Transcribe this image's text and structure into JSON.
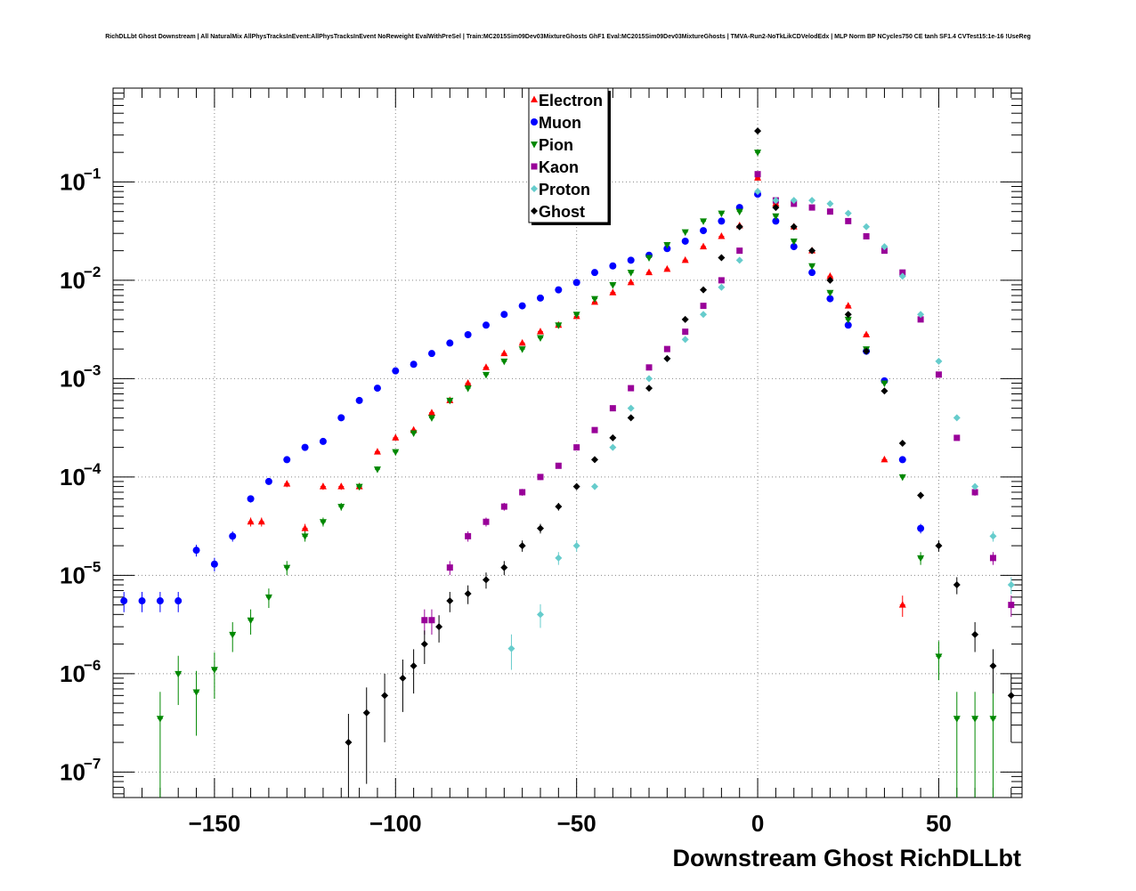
{
  "chart_data": {
    "type": "scatter",
    "title": "RichDLLbt Ghost Downstream | All NaturalMix AllPhysTracksInEvent:AllPhysTracksInEvent NoReweight EvalWithPreSel | Train:MC2015Sim09Dev03MixtureGhosts GhF1 Eval:MC2015Sim09Dev03MixtureGhosts | TMVA-Run2-NoTkLikCDVelodEdx | MLP Norm BP NCycles750 CE tanh SF1.4 CVTest15:1e-16 !UseReg",
    "xlabel": "Downstream Ghost RichDLLbt",
    "ylabel": "",
    "xlim": [
      -178,
      73
    ],
    "ylim": [
      5.5e-08,
      0.9
    ],
    "yscale": "log",
    "grid": true,
    "legend_position": "top-center",
    "x_ticks": [
      {
        "value": -150,
        "label": "−150"
      },
      {
        "value": -100,
        "label": "−100"
      },
      {
        "value": -50,
        "label": "−50"
      },
      {
        "value": 0,
        "label": "0"
      },
      {
        "value": 50,
        "label": "50"
      }
    ],
    "y_ticks": [
      {
        "value": 1e-07,
        "base": "10",
        "exp": "−7"
      },
      {
        "value": 1e-06,
        "base": "10",
        "exp": "−6"
      },
      {
        "value": 1e-05,
        "base": "10",
        "exp": "−5"
      },
      {
        "value": 0.0001,
        "base": "10",
        "exp": "−4"
      },
      {
        "value": 0.001,
        "base": "10",
        "exp": "−3"
      },
      {
        "value": 0.01,
        "base": "10",
        "exp": "−2"
      },
      {
        "value": 0.1,
        "base": "10",
        "exp": "−1"
      }
    ],
    "series": [
      {
        "name": "Electron",
        "color": "#ff0000",
        "marker": "triangle-up",
        "x": [
          -140,
          -137,
          -130,
          -125,
          -120,
          -115,
          -110,
          -105,
          -100,
          -95,
          -90,
          -85,
          -80,
          -75,
          -70,
          -65,
          -60,
          -55,
          -50,
          -45,
          -40,
          -35,
          -30,
          -25,
          -20,
          -15,
          -10,
          -5,
          0,
          5,
          10,
          15,
          20,
          25,
          30,
          35,
          40
        ],
        "y": [
          3.5e-05,
          3.5e-05,
          8.5e-05,
          3e-05,
          8e-05,
          8e-05,
          8e-05,
          0.00018,
          0.00025,
          0.0003,
          0.00045,
          0.0006,
          0.0009,
          0.0013,
          0.0018,
          0.0023,
          0.003,
          0.0035,
          0.0043,
          0.006,
          0.0075,
          0.0095,
          0.012,
          0.013,
          0.016,
          0.022,
          0.028,
          0.036,
          0.11,
          0.06,
          0.035,
          0.02,
          0.011,
          0.0055,
          0.0028,
          0.00015,
          5e-06
        ]
      },
      {
        "name": "Muon",
        "color": "#0000ff",
        "marker": "circle",
        "x": [
          -175,
          -170,
          -165,
          -160,
          -155,
          -150,
          -145,
          -140,
          -135,
          -130,
          -125,
          -120,
          -115,
          -110,
          -105,
          -100,
          -95,
          -90,
          -85,
          -80,
          -75,
          -70,
          -65,
          -60,
          -55,
          -50,
          -45,
          -40,
          -35,
          -30,
          -25,
          -20,
          -15,
          -10,
          -5,
          0,
          5,
          10,
          15,
          20,
          25,
          30,
          35,
          40,
          45
        ],
        "y": [
          5.5e-06,
          5.5e-06,
          5.5e-06,
          5.5e-06,
          1.8e-05,
          1.3e-05,
          2.5e-05,
          6e-05,
          9e-05,
          0.00015,
          0.0002,
          0.00023,
          0.0004,
          0.0006,
          0.0008,
          0.0012,
          0.0014,
          0.0018,
          0.0023,
          0.0028,
          0.0035,
          0.0045,
          0.0055,
          0.0066,
          0.008,
          0.0095,
          0.012,
          0.014,
          0.016,
          0.018,
          0.021,
          0.025,
          0.032,
          0.04,
          0.055,
          0.075,
          0.04,
          0.022,
          0.012,
          0.0065,
          0.0035,
          0.0019,
          0.00095,
          0.00015,
          3e-05
        ]
      },
      {
        "name": "Pion",
        "color": "#008800",
        "marker": "triangle-down",
        "x": [
          -165,
          -160,
          -155,
          -150,
          -145,
          -140,
          -135,
          -130,
          -125,
          -120,
          -115,
          -110,
          -105,
          -100,
          -95,
          -90,
          -85,
          -80,
          -75,
          -70,
          -65,
          -60,
          -55,
          -50,
          -45,
          -40,
          -35,
          -30,
          -25,
          -20,
          -15,
          -10,
          -5,
          0,
          5,
          10,
          15,
          20,
          25,
          30,
          35,
          40,
          45,
          50,
          55,
          60,
          65
        ],
        "y": [
          3.5e-07,
          1e-06,
          6.5e-07,
          1.1e-06,
          2.5e-06,
          3.5e-06,
          6e-06,
          1.2e-05,
          2.5e-05,
          3.5e-05,
          5e-05,
          8e-05,
          0.00012,
          0.00018,
          0.00028,
          0.0004,
          0.0006,
          0.0008,
          0.0011,
          0.0015,
          0.002,
          0.0026,
          0.0035,
          0.0045,
          0.0065,
          0.009,
          0.012,
          0.017,
          0.023,
          0.031,
          0.04,
          0.048,
          0.05,
          0.2,
          0.045,
          0.025,
          0.014,
          0.0075,
          0.004,
          0.002,
          0.0009,
          0.0001,
          1.5e-05,
          1.5e-06,
          3.5e-07,
          3.5e-07,
          3.5e-07
        ]
      },
      {
        "name": "Kaon",
        "color": "#990099",
        "marker": "square",
        "x": [
          -92,
          -90,
          -85,
          -80,
          -75,
          -70,
          -65,
          -60,
          -55,
          -50,
          -45,
          -40,
          -35,
          -30,
          -25,
          -20,
          -15,
          -10,
          -5,
          0,
          5,
          10,
          15,
          20,
          25,
          30,
          35,
          40,
          45,
          50,
          55,
          60,
          65,
          70
        ],
        "y": [
          3.5e-06,
          3.5e-06,
          1.2e-05,
          2.5e-05,
          3.5e-05,
          5e-05,
          7e-05,
          0.0001,
          0.00013,
          0.0002,
          0.0003,
          0.0005,
          0.0008,
          0.0013,
          0.002,
          0.003,
          0.0055,
          0.01,
          0.02,
          0.12,
          0.065,
          0.06,
          0.055,
          0.05,
          0.04,
          0.028,
          0.02,
          0.012,
          0.004,
          0.0011,
          0.00025,
          7e-05,
          1.5e-05,
          5e-06
        ]
      },
      {
        "name": "Proton",
        "color": "#66cccc",
        "marker": "cross",
        "x": [
          -68,
          -60,
          -55,
          -50,
          -45,
          -40,
          -35,
          -30,
          -25,
          -20,
          -15,
          -10,
          -5,
          0,
          5,
          10,
          15,
          20,
          25,
          30,
          35,
          40,
          45,
          50,
          55,
          60,
          65,
          70
        ],
        "y": [
          1.8e-06,
          4e-06,
          1.5e-05,
          2e-05,
          8e-05,
          0.0002,
          0.0005,
          0.001,
          0.0016,
          0.0025,
          0.0045,
          0.0085,
          0.016,
          0.08,
          0.065,
          0.065,
          0.065,
          0.06,
          0.048,
          0.035,
          0.022,
          0.011,
          0.0045,
          0.0015,
          0.0004,
          8e-05,
          2.5e-05,
          8e-06
        ]
      },
      {
        "name": "Ghost",
        "color": "#000000",
        "marker": "cross",
        "x": [
          -113,
          -108,
          -103,
          -98,
          -95,
          -92,
          -88,
          -85,
          -80,
          -75,
          -70,
          -65,
          -60,
          -55,
          -50,
          -45,
          -40,
          -35,
          -30,
          -25,
          -20,
          -15,
          -10,
          -5,
          0,
          5,
          10,
          15,
          20,
          25,
          30,
          35,
          40,
          45,
          50,
          55,
          60,
          65,
          70
        ],
        "y": [
          2e-07,
          4e-07,
          6e-07,
          9e-07,
          1.2e-06,
          2e-06,
          3e-06,
          5.5e-06,
          6.5e-06,
          9e-06,
          1.2e-05,
          2e-05,
          3e-05,
          5e-05,
          8e-05,
          0.00015,
          0.00025,
          0.0004,
          0.0008,
          0.0016,
          0.004,
          0.008,
          0.017,
          0.035,
          0.33,
          0.055,
          0.035,
          0.02,
          0.01,
          0.0045,
          0.0019,
          0.00075,
          0.00022,
          6.5e-05,
          2e-05,
          8e-06,
          2.5e-06,
          1.2e-06,
          6e-07
        ]
      }
    ]
  }
}
